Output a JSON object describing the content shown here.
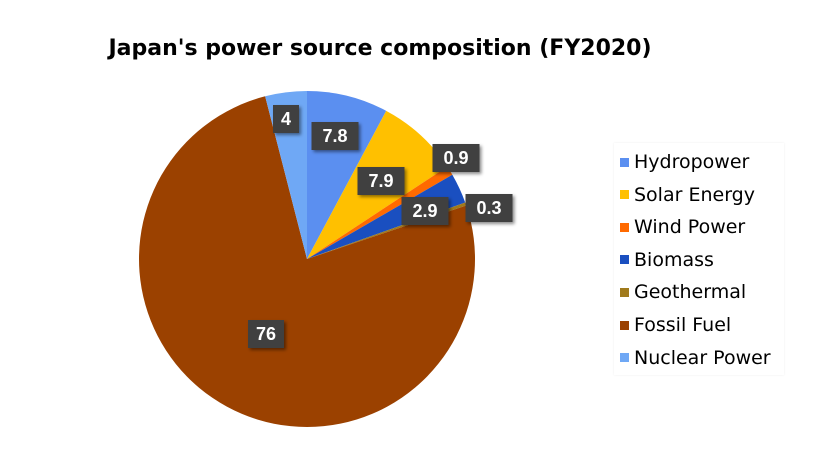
{
  "chart_data": {
    "type": "pie",
    "title": "Japan's power source composition (FY2020)",
    "categories": [
      "Hydropower",
      "Solar Energy",
      "Wind Power",
      "Biomass",
      "Geothermal",
      "Fossil Fuel",
      "Nuclear Power"
    ],
    "values": [
      7.8,
      7.9,
      0.9,
      2.9,
      0.3,
      76,
      4
    ],
    "data_labels": [
      "7.8",
      "7.9",
      "0.9",
      "2.9",
      "0.3",
      "76",
      "4"
    ],
    "colors": [
      "#5b8ff0",
      "#ffc000",
      "#ff6a00",
      "#1a4fc0",
      "#a07a1c",
      "#9b4100",
      "#6fa8f5"
    ],
    "start_angle_deg": 0,
    "direction": "clockwise",
    "legend_position": "right",
    "label_style": "dark-boxes-with-shadow"
  }
}
